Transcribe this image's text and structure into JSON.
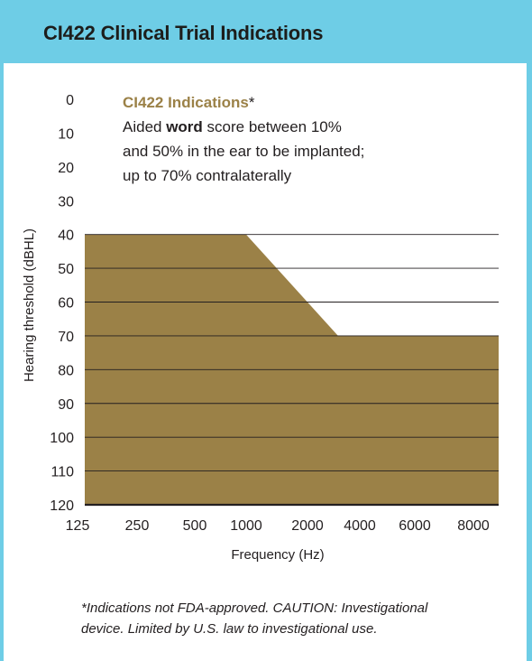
{
  "title": "CI422 Clinical Trial Indications",
  "annotation": {
    "heading": "CI422 Indications",
    "star": "*",
    "line1_pre": "Aided ",
    "line1_bold": "word",
    "line1_post": " score between 10%",
    "line2": "and 50% in the ear to be implanted;",
    "line3": "up to 70% contralaterally"
  },
  "footnote": {
    "line1": "*Indications not FDA-approved. CAUTION: Investigational",
    "line2": "device. Limited by U.S. law to investigational use."
  },
  "colors": {
    "background": "#6ecde6",
    "card": "#ffffff",
    "fill": "#9b8147",
    "heading": "#9b8147",
    "gridline": "#231f20"
  },
  "chart_data": {
    "type": "area",
    "title": "",
    "xlabel": "Frequency (Hz)",
    "ylabel": "Hearing threshold (dBHL)",
    "x_categories": [
      "125",
      "250",
      "500",
      "1000",
      "2000",
      "4000",
      "6000",
      "8000"
    ],
    "y_ticks": [
      "0",
      "10",
      "20",
      "30",
      "40",
      "50",
      "60",
      "70",
      "80",
      "90",
      "100",
      "110",
      "120"
    ],
    "ylim": [
      0,
      120
    ],
    "y_inverted": true,
    "grid": true,
    "series": [
      {
        "x": [
          "125",
          "1000",
          "3000",
          "8000"
        ],
        "y": [
          40,
          40,
          70,
          70
        ]
      }
    ]
  }
}
